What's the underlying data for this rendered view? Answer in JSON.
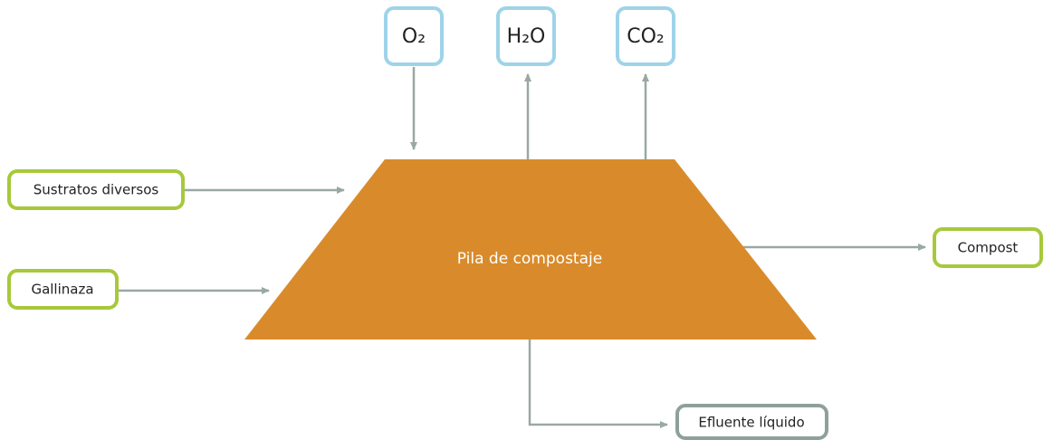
{
  "nodes": [
    {
      "label": "O₂"
    },
    {
      "label": "H₂O"
    },
    {
      "label": "CO₂"
    },
    {
      "label": "Sustratos diversos"
    },
    {
      "label": "Gallinaza"
    },
    {
      "label": "Pila de compostaje"
    },
    {
      "label": "Compost"
    },
    {
      "label": "Efluente líquido"
    }
  ]
}
